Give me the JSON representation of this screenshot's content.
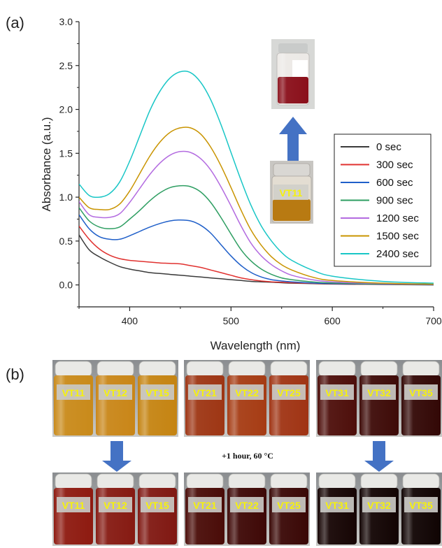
{
  "figure": {
    "panel_a_label": "(a)",
    "panel_b_label": "(b)",
    "condition_text": "+1 hour, 60 °C",
    "inset_vial_label": "VT11"
  },
  "colors": {
    "curve_0": "#3a3a3a",
    "curve_300": "#e0312f",
    "curve_600": "#1f5fc9",
    "curve_900": "#2e9e62",
    "curve_1200": "#b36be0",
    "curve_1500": "#c99400",
    "curve_2400": "#18c6c6",
    "arrow": "#4472c4",
    "vial_label_text": "#f6f20a"
  },
  "chart_data": {
    "type": "line",
    "xlabel": "Wavelength (nm)",
    "ylabel": "Absorbance (a.u.)",
    "xlim": [
      350,
      700
    ],
    "ylim": [
      -0.25,
      3.0
    ],
    "x_ticks": [
      400,
      500,
      600,
      700
    ],
    "y_ticks": [
      "0.0",
      "0.5",
      "1.0",
      "1.5",
      "2.0",
      "2.5",
      "3.0"
    ],
    "legend_position": "right",
    "grid": false,
    "x": [
      350,
      360,
      370,
      380,
      390,
      400,
      410,
      420,
      430,
      440,
      450,
      460,
      470,
      480,
      490,
      500,
      510,
      520,
      530,
      540,
      550,
      560,
      580,
      600,
      650,
      700
    ],
    "series": [
      {
        "name": "0 sec",
        "values": [
          0.57,
          0.4,
          0.32,
          0.26,
          0.21,
          0.18,
          0.16,
          0.14,
          0.13,
          0.12,
          0.11,
          0.1,
          0.09,
          0.08,
          0.07,
          0.06,
          0.05,
          0.04,
          0.035,
          0.03,
          0.025,
          0.02,
          0.015,
          0.01,
          0.005,
          0.0
        ]
      },
      {
        "name": "300 sec",
        "values": [
          0.67,
          0.52,
          0.41,
          0.34,
          0.3,
          0.28,
          0.27,
          0.26,
          0.25,
          0.245,
          0.24,
          0.22,
          0.2,
          0.17,
          0.14,
          0.11,
          0.08,
          0.06,
          0.045,
          0.035,
          0.03,
          0.025,
          0.018,
          0.012,
          0.006,
          0.005
        ]
      },
      {
        "name": "600 sec",
        "values": [
          0.8,
          0.64,
          0.55,
          0.52,
          0.52,
          0.56,
          0.61,
          0.66,
          0.7,
          0.73,
          0.74,
          0.73,
          0.68,
          0.59,
          0.46,
          0.33,
          0.22,
          0.14,
          0.09,
          0.06,
          0.045,
          0.035,
          0.022,
          0.015,
          0.008,
          0.005
        ]
      },
      {
        "name": "900 sec",
        "values": [
          0.88,
          0.73,
          0.66,
          0.64,
          0.66,
          0.75,
          0.85,
          0.96,
          1.05,
          1.11,
          1.13,
          1.12,
          1.06,
          0.94,
          0.77,
          0.58,
          0.4,
          0.27,
          0.18,
          0.12,
          0.08,
          0.06,
          0.035,
          0.022,
          0.01,
          0.006
        ]
      },
      {
        "name": "1200 sec",
        "values": [
          0.95,
          0.8,
          0.77,
          0.77,
          0.81,
          0.94,
          1.1,
          1.26,
          1.39,
          1.48,
          1.52,
          1.51,
          1.44,
          1.31,
          1.12,
          0.9,
          0.67,
          0.47,
          0.33,
          0.23,
          0.16,
          0.11,
          0.06,
          0.035,
          0.015,
          0.008
        ]
      },
      {
        "name": "1500 sec",
        "values": [
          1.0,
          0.88,
          0.86,
          0.86,
          0.92,
          1.07,
          1.27,
          1.47,
          1.63,
          1.74,
          1.79,
          1.79,
          1.72,
          1.57,
          1.36,
          1.11,
          0.85,
          0.62,
          0.45,
          0.32,
          0.23,
          0.17,
          0.09,
          0.05,
          0.02,
          0.01
        ]
      },
      {
        "name": "2400 sec",
        "values": [
          1.15,
          1.02,
          1.0,
          1.04,
          1.17,
          1.41,
          1.7,
          1.99,
          2.21,
          2.36,
          2.43,
          2.42,
          2.31,
          2.11,
          1.83,
          1.51,
          1.19,
          0.9,
          0.67,
          0.5,
          0.37,
          0.28,
          0.17,
          0.1,
          0.04,
          0.02
        ]
      }
    ]
  },
  "vial_groups": [
    {
      "before": [
        "VT11",
        "VT12",
        "VT15"
      ],
      "after": [
        "VT11",
        "VT12",
        "VT15"
      ],
      "before_colors": [
        "#c98a1a",
        "#c98618",
        "#c58412"
      ],
      "after_colors": [
        "#8e1a10",
        "#861a12",
        "#801812"
      ]
    },
    {
      "before": [
        "VT21",
        "VT22",
        "VT25"
      ],
      "after": [
        "VT21",
        "VT22",
        "VT25"
      ],
      "before_colors": [
        "#9e3614",
        "#a63c14",
        "#a03414"
      ],
      "after_colors": [
        "#4a0c08",
        "#3e0806",
        "#3a0806"
      ]
    },
    {
      "before": [
        "VT31",
        "VT32",
        "VT35"
      ],
      "after": [
        "VT31",
        "VT32",
        "VT35"
      ],
      "before_colors": [
        "#4e0f0b",
        "#3e0b08",
        "#330806"
      ],
      "after_colors": [
        "#160504",
        "#120403",
        "#100403"
      ]
    }
  ]
}
